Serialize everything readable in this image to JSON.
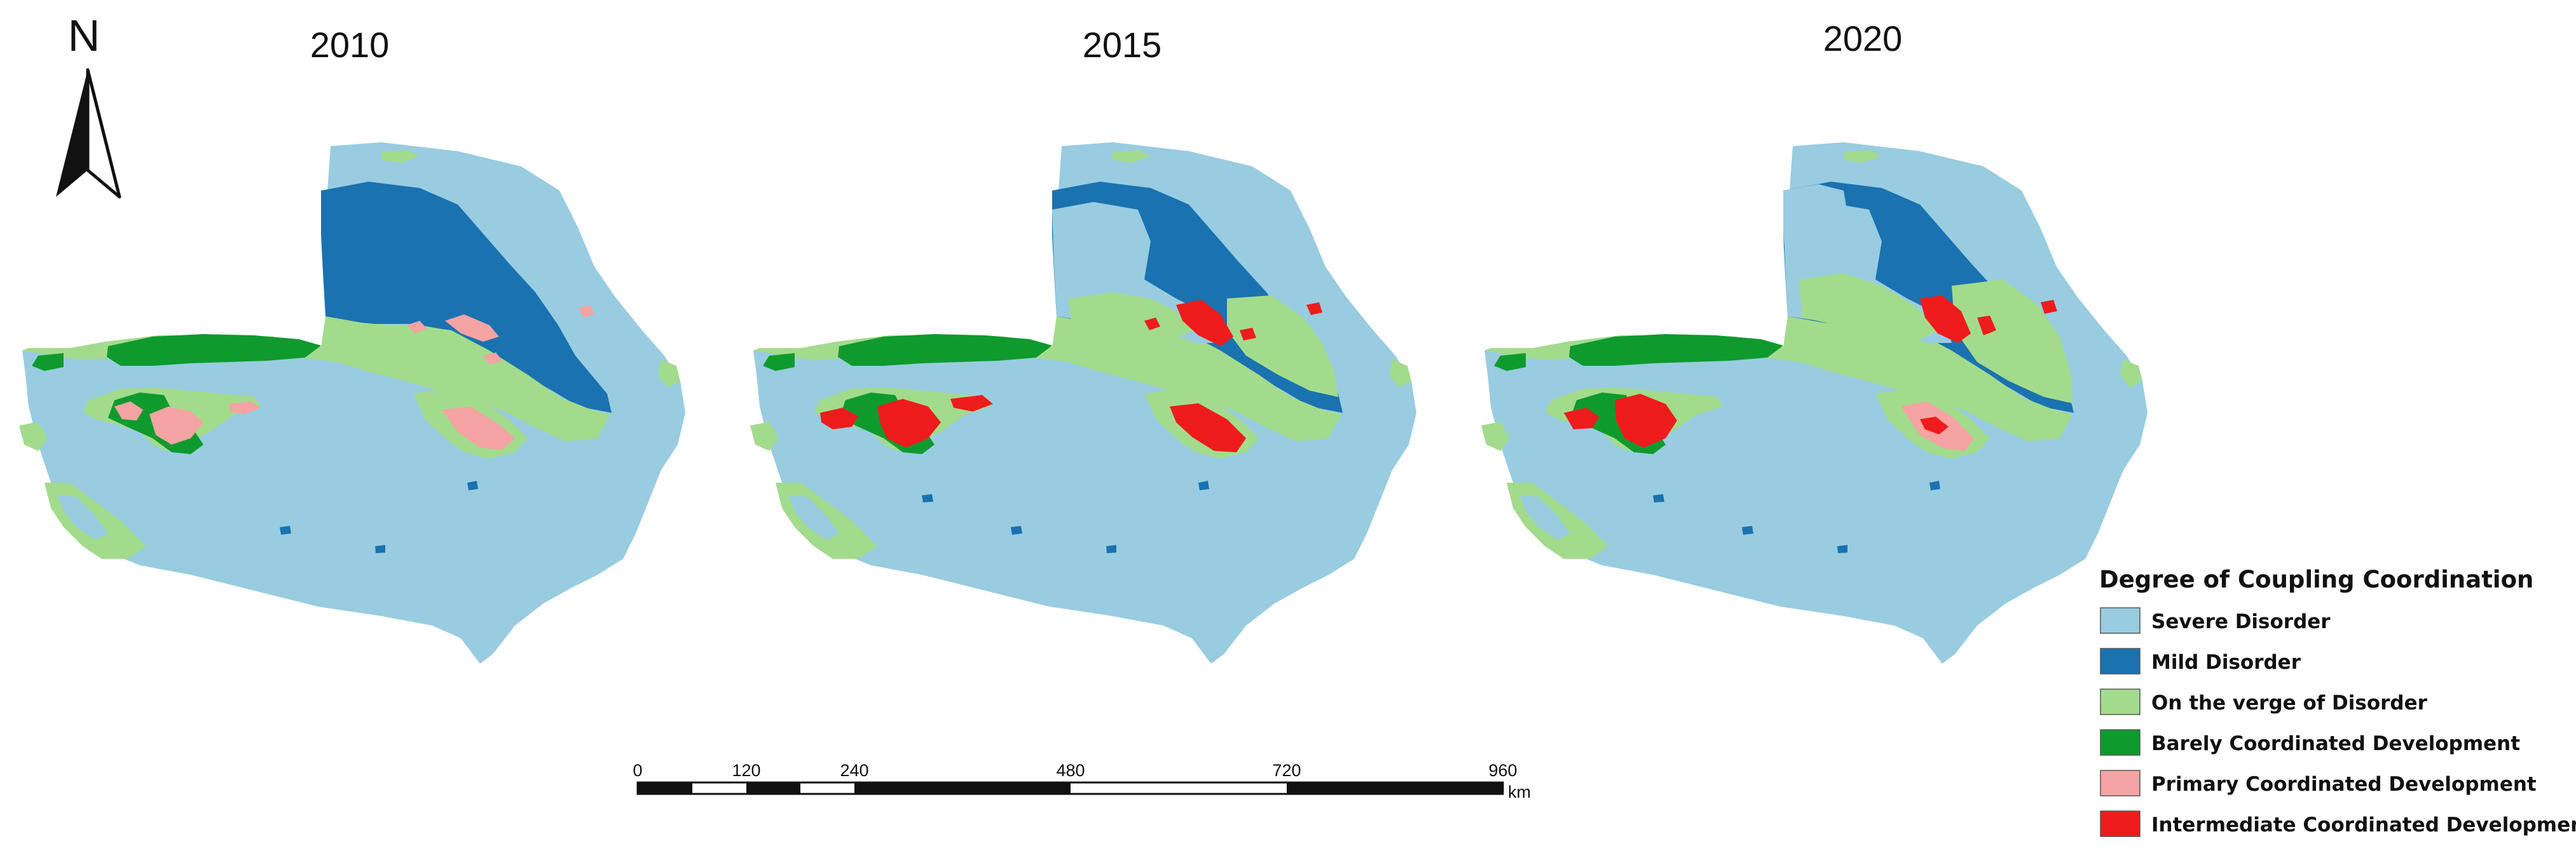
{
  "maps": [
    {
      "year": "2010"
    },
    {
      "year": "2015"
    },
    {
      "year": "2020"
    }
  ],
  "north_arrow": {
    "label": "N"
  },
  "legend": {
    "title": "Degree of Coupling Coordination",
    "items": [
      {
        "label": "Severe Disorder",
        "color": "#99cce0"
      },
      {
        "label": "Mild Disorder",
        "color": "#1a72b0"
      },
      {
        "label": "On the verge of Disorder",
        "color": "#a3db8c"
      },
      {
        "label": "Barely Coordinated Development",
        "color": "#0f9a2e"
      },
      {
        "label": "Primary Coordinated Development",
        "color": "#f5a3a3"
      },
      {
        "label": "Intermediate Coordinated Development",
        "color": "#ee1c1c"
      }
    ]
  },
  "scale_bar": {
    "ticks": [
      "0",
      "120",
      "240",
      "480",
      "720",
      "960"
    ],
    "unit": "km"
  }
}
